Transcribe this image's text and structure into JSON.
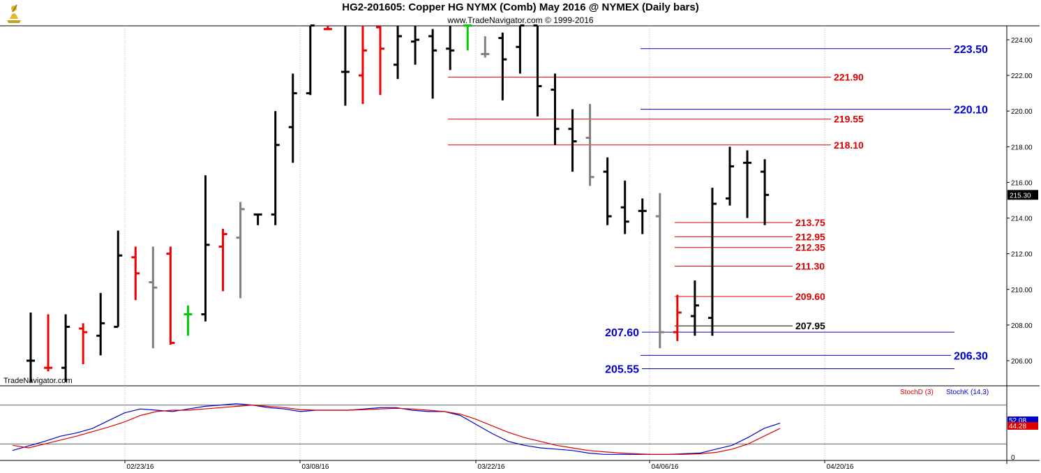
{
  "header": {
    "title": "HG2-201605:  Copper HG NYMX (Comb) May 2016 @ NYMEX  (Daily bars)",
    "subtitle": "www.TradeNavigator.com © 1999-2016",
    "watermark": "TradeNavigator.com"
  },
  "colors": {
    "up": "#000000",
    "down": "#ee0000",
    "neutral": "#808080",
    "green": "#00cc00",
    "support_line": "#0000cc",
    "resistance_line": "#dd0000",
    "stoch_d": "#dd0000",
    "stoch_k": "#0000cc"
  },
  "chart_data": [
    {
      "type": "ohlc",
      "title": "HG2-201605:  Copper HG NYMX (Comb) May 2016 @ NYMEX  (Daily bars)",
      "ylim": [
        204.5,
        224.8
      ],
      "y_ticks": [
        "206.00",
        "208.00",
        "210.00",
        "212.00",
        "214.00",
        "216.00",
        "218.00",
        "220.00",
        "222.00",
        "224.00"
      ],
      "x_ticks": [
        "02/23/16",
        "03/08/16",
        "03/22/16",
        "04/06/16",
        "04/20/16"
      ],
      "last_price": "215.30",
      "bars": [
        {
          "date": "02/16/16",
          "o": 206.0,
          "h": 208.7,
          "l": 204.8,
          "c": 206.0,
          "color": "up"
        },
        {
          "date": "02/17/16",
          "o": 205.6,
          "h": 208.6,
          "l": 205.4,
          "c": 205.6,
          "color": "down"
        },
        {
          "date": "02/18/16",
          "o": 205.6,
          "h": 208.6,
          "l": 204.8,
          "c": 207.9,
          "color": "up"
        },
        {
          "date": "02/19/16",
          "o": 207.8,
          "h": 208.1,
          "l": 205.8,
          "c": 207.6,
          "color": "down"
        },
        {
          "date": "02/22/16",
          "o": 207.4,
          "h": 209.8,
          "l": 206.3,
          "c": 208.1,
          "color": "up"
        },
        {
          "date": "02/23/16",
          "o": 207.9,
          "h": 213.3,
          "l": 207.9,
          "c": 211.9,
          "color": "up"
        },
        {
          "date": "02/24/16",
          "o": 211.8,
          "h": 212.4,
          "l": 209.4,
          "c": 210.9,
          "color": "down"
        },
        {
          "date": "02/25/16",
          "o": 210.4,
          "h": 212.4,
          "l": 206.7,
          "c": 210.1,
          "color": "neutral"
        },
        {
          "date": "02/26/16",
          "o": 212.0,
          "h": 212.4,
          "l": 206.9,
          "c": 207.0,
          "color": "down"
        },
        {
          "date": "02/29/16",
          "o": 208.6,
          "h": 209.1,
          "l": 207.4,
          "c": 208.6,
          "color": "green"
        },
        {
          "date": "02/29/16b",
          "o": 208.6,
          "h": 216.4,
          "l": 208.2,
          "c": 212.5,
          "color": "up"
        },
        {
          "date": "03/01/16",
          "o": 212.4,
          "h": 213.4,
          "l": 209.9,
          "c": 213.1,
          "color": "down"
        },
        {
          "date": "03/02/16",
          "o": 212.9,
          "h": 214.9,
          "l": 209.5,
          "c": 214.5,
          "color": "neutral"
        },
        {
          "date": "03/03/16",
          "o": 214.2,
          "h": 214.2,
          "l": 213.6,
          "c": 214.2,
          "color": "up"
        },
        {
          "date": "03/04/16",
          "o": 214.2,
          "h": 220.0,
          "l": 213.6,
          "c": 218.1,
          "color": "up"
        },
        {
          "date": "03/07/16",
          "o": 219.1,
          "h": 222.1,
          "l": 217.1,
          "c": 221.0,
          "color": "up"
        },
        {
          "date": "03/08/16",
          "o": 221.0,
          "h": 224.8,
          "l": 220.9,
          "c": 224.8,
          "color": "up"
        },
        {
          "date": "03/09/16",
          "o": 224.6,
          "h": 224.8,
          "l": 224.6,
          "c": 224.6,
          "color": "down"
        },
        {
          "date": "03/10/16",
          "o": 222.2,
          "h": 224.8,
          "l": 220.3,
          "c": 222.2,
          "color": "up"
        },
        {
          "date": "03/11/16",
          "o": 222.0,
          "h": 224.8,
          "l": 220.4,
          "c": 223.4,
          "color": "down"
        },
        {
          "date": "03/14/16",
          "o": 224.7,
          "h": 224.8,
          "l": 220.9,
          "c": 223.5,
          "color": "down"
        },
        {
          "date": "03/15/16",
          "o": 222.6,
          "h": 224.8,
          "l": 221.8,
          "c": 224.2,
          "color": "up"
        },
        {
          "date": "03/16/16",
          "o": 223.9,
          "h": 224.8,
          "l": 222.6,
          "c": 224.0,
          "color": "up"
        },
        {
          "date": "03/17/16",
          "o": 224.2,
          "h": 224.6,
          "l": 220.7,
          "c": 223.4,
          "color": "up"
        },
        {
          "date": "03/18/16",
          "o": 223.5,
          "h": 224.8,
          "l": 222.3,
          "c": 223.4,
          "color": "up"
        },
        {
          "date": "03/21/16",
          "o": 224.8,
          "h": 224.8,
          "l": 223.4,
          "c": 224.8,
          "color": "green"
        },
        {
          "date": "03/22/16",
          "o": 223.2,
          "h": 224.2,
          "l": 223.0,
          "c": 223.2,
          "color": "neutral"
        },
        {
          "date": "03/23/16",
          "o": 224.1,
          "h": 224.4,
          "l": 220.6,
          "c": 222.9,
          "color": "up"
        },
        {
          "date": "03/24/16",
          "o": 223.6,
          "h": 224.8,
          "l": 222.1,
          "c": 224.8,
          "color": "up"
        },
        {
          "date": "03/25/16",
          "o": 224.8,
          "h": 224.8,
          "l": 219.7,
          "c": 221.4,
          "color": "up"
        },
        {
          "date": "03/28/16",
          "o": 221.2,
          "h": 222.1,
          "l": 218.1,
          "c": 219.0,
          "color": "up"
        },
        {
          "date": "03/29/16",
          "o": 219.0,
          "h": 220.1,
          "l": 216.6,
          "c": 218.3,
          "color": "up"
        },
        {
          "date": "03/30/16",
          "o": 218.5,
          "h": 220.4,
          "l": 215.8,
          "c": 216.3,
          "color": "neutral"
        },
        {
          "date": "03/31/16",
          "o": 216.6,
          "h": 217.4,
          "l": 213.6,
          "c": 214.1,
          "color": "up"
        },
        {
          "date": "04/01/16",
          "o": 214.6,
          "h": 216.1,
          "l": 213.1,
          "c": 213.8,
          "color": "up"
        },
        {
          "date": "04/04/16",
          "o": 214.4,
          "h": 215.1,
          "l": 213.1,
          "c": 214.4,
          "color": "up"
        },
        {
          "date": "04/05/16",
          "o": 214.1,
          "h": 215.4,
          "l": 206.7,
          "c": 207.6,
          "color": "neutral"
        },
        {
          "date": "04/06/16",
          "o": 207.6,
          "h": 209.7,
          "l": 207.1,
          "c": 208.7,
          "color": "down"
        },
        {
          "date": "04/07/16",
          "o": 208.5,
          "h": 210.5,
          "l": 207.4,
          "c": 209.1,
          "color": "up"
        },
        {
          "date": "04/08/16",
          "o": 208.4,
          "h": 215.7,
          "l": 207.4,
          "c": 214.8,
          "color": "up"
        },
        {
          "date": "04/11/16",
          "o": 215.1,
          "h": 218.0,
          "l": 214.7,
          "c": 216.9,
          "color": "up"
        },
        {
          "date": "04/12/16",
          "o": 217.1,
          "h": 217.8,
          "l": 214.0,
          "c": 217.1,
          "color": "up"
        },
        {
          "date": "04/13/16",
          "o": 216.6,
          "h": 217.3,
          "l": 213.6,
          "c": 215.3,
          "color": "up"
        }
      ],
      "levels": [
        {
          "value": 223.5,
          "label": "223.50",
          "color": "support_line",
          "side": "right"
        },
        {
          "value": 221.9,
          "label": "221.90",
          "color": "resistance_line",
          "side": "right"
        },
        {
          "value": 220.1,
          "label": "220.10",
          "color": "support_line",
          "side": "right"
        },
        {
          "value": 219.55,
          "label": "219.55",
          "color": "resistance_line",
          "side": "right"
        },
        {
          "value": 218.1,
          "label": "218.10",
          "color": "resistance_line",
          "side": "right"
        },
        {
          "value": 213.75,
          "label": "213.75",
          "color": "resistance_line",
          "side": "right"
        },
        {
          "value": 212.95,
          "label": "212.95",
          "color": "resistance_line",
          "side": "right"
        },
        {
          "value": 212.35,
          "label": "212.35",
          "color": "resistance_line",
          "side": "right"
        },
        {
          "value": 211.3,
          "label": "211.30",
          "color": "resistance_line",
          "side": "right"
        },
        {
          "value": 209.6,
          "label": "209.60",
          "color": "resistance_line",
          "side": "right"
        },
        {
          "value": 207.95,
          "label": "207.95",
          "color": "up",
          "side": "right"
        },
        {
          "value": 207.6,
          "label": "207.60",
          "color": "support_line",
          "side": "left"
        },
        {
          "value": 206.3,
          "label": "206.30",
          "color": "support_line",
          "side": "right"
        },
        {
          "value": 205.55,
          "label": "205.55",
          "color": "support_line",
          "side": "left"
        }
      ]
    },
    {
      "type": "line",
      "legend": [
        "StochD (3)",
        "StochK (14,3)"
      ],
      "ylim": [
        0,
        100
      ],
      "y_ticks": [
        "0"
      ],
      "reference_lines": [
        20,
        80
      ],
      "last_values": {
        "StochK (14,3)": "52.08",
        "StochD (3)": "44.28"
      },
      "series": [
        {
          "name": "StochK (14,3)",
          "color": "stoch_k",
          "values": [
            10,
            17,
            24,
            32,
            37,
            44,
            56,
            68,
            74,
            72,
            70,
            74,
            78,
            80,
            82,
            80,
            76,
            74,
            70,
            72,
            72,
            72,
            74,
            76,
            76,
            72,
            70,
            70,
            64,
            50,
            36,
            24,
            18,
            14,
            12,
            10,
            6,
            4,
            4,
            4,
            4,
            4,
            5,
            6,
            12,
            18,
            30,
            44,
            52
          ]
        },
        {
          "name": "StochD (3)",
          "color": "stoch_d",
          "values": [
            18,
            14,
            20,
            26,
            32,
            39,
            46,
            54,
            64,
            70,
            72,
            72,
            74,
            76,
            78,
            80,
            78,
            76,
            73,
            72,
            72,
            72,
            73,
            74,
            75,
            74,
            72,
            70,
            66,
            58,
            48,
            38,
            30,
            24,
            18,
            14,
            10,
            8,
            6,
            5,
            4,
            4,
            4,
            5,
            7,
            12,
            20,
            32,
            44
          ]
        }
      ]
    }
  ]
}
